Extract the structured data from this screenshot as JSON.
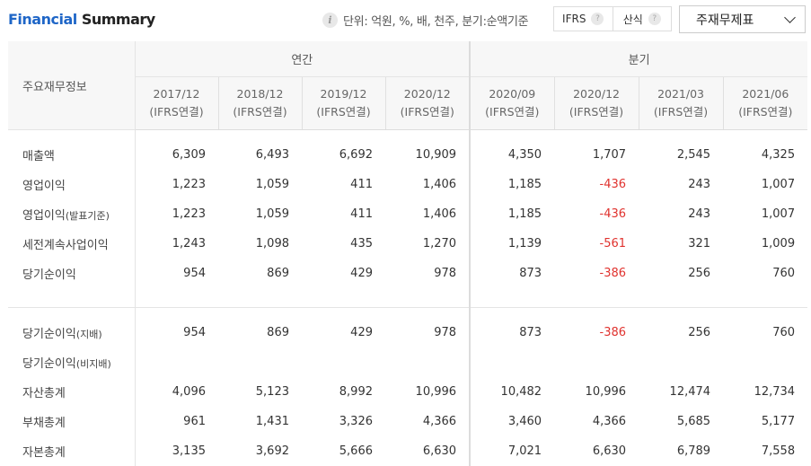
{
  "title": {
    "part1": "Financial",
    "part2": " Summary"
  },
  "unit_note": "단위: 억원, %, 배, 천주, 분기:순액기준",
  "toggle": {
    "ifrs": "IFRS",
    "formula": "산식"
  },
  "select": {
    "value": "주재무제표"
  },
  "table": {
    "corner": "주요재무정보",
    "annual_label": "연간",
    "quarter_label": "분기",
    "periods": [
      {
        "date": "2017/12",
        "type": "(IFRS연결)"
      },
      {
        "date": "2018/12",
        "type": "(IFRS연결)"
      },
      {
        "date": "2019/12",
        "type": "(IFRS연결)"
      },
      {
        "date": "2020/12",
        "type": "(IFRS연결)"
      },
      {
        "date": "2020/09",
        "type": "(IFRS연결)"
      },
      {
        "date": "2020/12",
        "type": "(IFRS연결)"
      },
      {
        "date": "2021/03",
        "type": "(IFRS연결)"
      },
      {
        "date": "2021/06",
        "type": "(IFRS연결)"
      }
    ],
    "rows": [
      {
        "label": "매출액",
        "values": [
          "6,309",
          "6,493",
          "6,692",
          "10,909",
          "4,350",
          "1,707",
          "2,545",
          "4,325"
        ]
      },
      {
        "label": "영업이익",
        "values": [
          "1,223",
          "1,059",
          "411",
          "1,406",
          "1,185",
          "-436",
          "243",
          "1,007"
        ]
      },
      {
        "label": "영업이익",
        "label_sub": "(발표기준)",
        "values": [
          "1,223",
          "1,059",
          "411",
          "1,406",
          "1,185",
          "-436",
          "243",
          "1,007"
        ]
      },
      {
        "label": "세전계속사업이익",
        "values": [
          "1,243",
          "1,098",
          "435",
          "1,270",
          "1,139",
          "-561",
          "321",
          "1,009"
        ]
      },
      {
        "label": "당기순이익",
        "values": [
          "954",
          "869",
          "429",
          "978",
          "873",
          "-386",
          "256",
          "760"
        ]
      },
      {
        "label": "당기순이익",
        "label_sub": "(지배)",
        "values": [
          "954",
          "869",
          "429",
          "978",
          "873",
          "-386",
          "256",
          "760"
        ]
      },
      {
        "label": "당기순이익",
        "label_sub": "(비지배)",
        "values": [
          "",
          "",
          "",
          "",
          "",
          "",
          "",
          ""
        ]
      },
      {
        "label": "자산총계",
        "values": [
          "4,096",
          "5,123",
          "8,992",
          "10,996",
          "10,482",
          "10,996",
          "12,474",
          "12,734"
        ]
      },
      {
        "label": "부채총계",
        "values": [
          "961",
          "1,431",
          "3,326",
          "4,366",
          "3,460",
          "4,366",
          "5,685",
          "5,177"
        ]
      },
      {
        "label": "자본총계",
        "values": [
          "3,135",
          "3,692",
          "5,666",
          "6,630",
          "7,021",
          "6,630",
          "6,789",
          "7,558"
        ]
      }
    ]
  }
}
